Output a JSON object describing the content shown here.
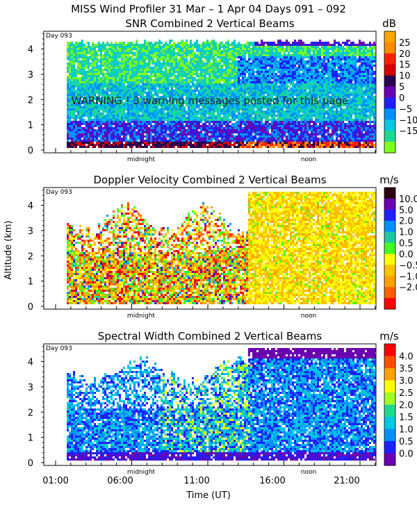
{
  "title": "MISS Wind Profiler  31 Mar –  1 Apr 04 Days 091 – 092",
  "ylabel": "Altitude (km)",
  "xlabel": "Time (UT)",
  "x_ticks": [
    "01:00",
    "06:00",
    "11:00",
    "16:00",
    "21:00"
  ],
  "midnight_label": "midnight",
  "noon_label": "noon",
  "warning": "WARNING ! 3 warning messages posted for this page",
  "chart_data": [
    {
      "type": "heatmap",
      "title": "SNR Combined 2 Vertical Beams",
      "unit": "dB",
      "day_label": "Day 093",
      "xlabel": "Time (UT)",
      "ylabel": "Altitude (km)",
      "ylim": [
        0,
        4.8
      ],
      "y_ticks": [
        0,
        1,
        2,
        3,
        4
      ],
      "colorbar": {
        "labels": [
          "25",
          "20",
          "15",
          "10",
          "5",
          "0",
          "−5",
          "−10",
          "−15"
        ],
        "colors": [
          "#ffa500",
          "#ff8c00",
          "#ff2000",
          "#d40000",
          "#2a0050",
          "#6a00b0",
          "#2020ff",
          "#0090ff",
          "#00c8e0",
          "#20d890",
          "#80ff20"
        ]
      }
    },
    {
      "type": "heatmap",
      "title": "Doppler Velocity Combined 2 Vertical Beams",
      "unit": "m/s",
      "day_label": "Day 093",
      "xlabel": "Time (UT)",
      "ylabel": "Altitude (km)",
      "ylim": [
        0,
        4.8
      ],
      "y_ticks": [
        0,
        1,
        2,
        3,
        4
      ],
      "colorbar": {
        "labels": [
          "10.0",
          "5.0",
          "2.0",
          "1.0",
          "0.5",
          "0.0",
          "−0.5",
          "−1.0",
          "−2.0"
        ],
        "colors": [
          "#2a0010",
          "#6a00b0",
          "#2020ff",
          "#0090ff",
          "#20c8a0",
          "#40ff20",
          "#ffff00",
          "#ffc000",
          "#ffa000",
          "#ff6000",
          "#ff0000"
        ]
      }
    },
    {
      "type": "heatmap",
      "title": "Spectral Width Combined 2 Vertical Beams",
      "unit": "m/s",
      "day_label": "Day 093",
      "xlabel": "Time (UT)",
      "ylabel": "Altitude (km)",
      "ylim": [
        0,
        4.8
      ],
      "y_ticks": [
        0,
        1,
        2,
        3,
        4
      ],
      "colorbar": {
        "labels": [
          "4.0",
          "3.5",
          "3.0",
          "2.5",
          "2.0",
          "1.5",
          "1.0",
          "0.5",
          "0.0"
        ],
        "colors": [
          "#ff0000",
          "#ff5000",
          "#ffa000",
          "#ffff00",
          "#a0ff20",
          "#20d890",
          "#00c8e0",
          "#0090ff",
          "#2020ff",
          "#6a00b0"
        ]
      }
    }
  ]
}
